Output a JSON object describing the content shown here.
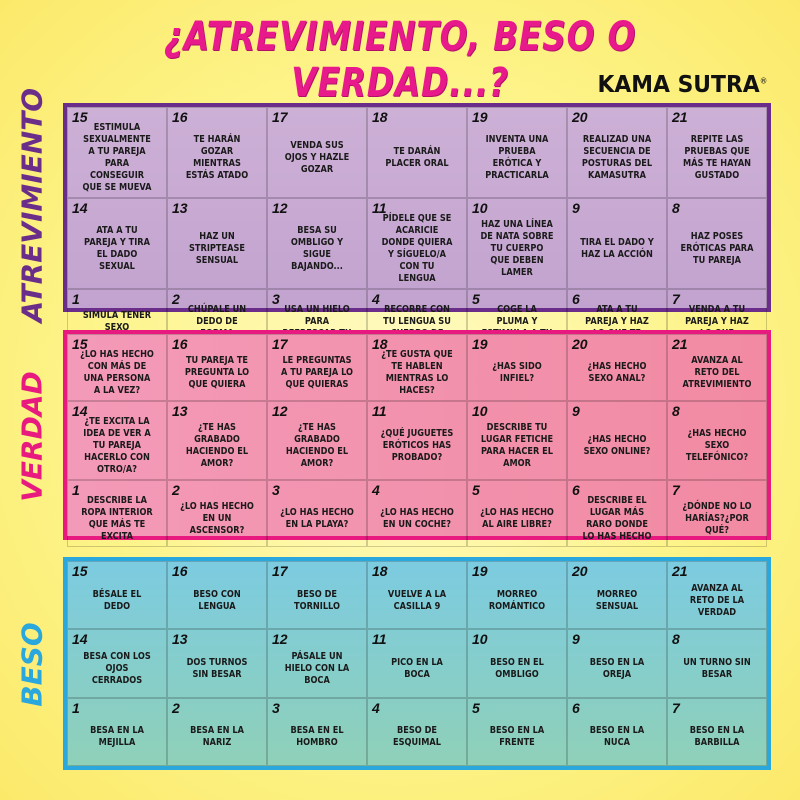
{
  "title": "¿ATREVIMIENTO, BESO O VERDAD...?",
  "logo": "KAMA SUTRA",
  "colors": {
    "title": "#e8198b",
    "atrevimiento": "#6b2d8a",
    "verdad": "#e8197f",
    "beso": "#2aa7dc",
    "background": "#fdf48a"
  },
  "sections": [
    {
      "label": "ATREVIMIENTO",
      "rows": [
        [
          {
            "num": "15",
            "text": "Estimula sexualmente a tu pareja para conseguir que se mueva"
          },
          {
            "num": "16",
            "text": "Te harán gozar mientras estás atado"
          },
          {
            "num": "17",
            "text": "Venda sus ojos y hazle gozar"
          },
          {
            "num": "18",
            "text": "Te darán placer oral"
          },
          {
            "num": "19",
            "text": "Inventa una prueba erótica y practicarla"
          },
          {
            "num": "20",
            "text": "Realizad una secuencia de posturas del Kamasutra"
          },
          {
            "num": "21",
            "text": "Repite las pruebas que más te hayan gustado"
          }
        ],
        [
          {
            "num": "14",
            "text": "Ata a tu pareja y tira el dado sexual"
          },
          {
            "num": "13",
            "text": "Haz un striptease sensual"
          },
          {
            "num": "12",
            "text": "Besa su ombligo y sigue bajando..."
          },
          {
            "num": "11",
            "text": "Pídele que se acaricie donde quiera y síguelo/a con tu lengua"
          },
          {
            "num": "10",
            "text": "Haz una línea de nata sobre tu cuerpo que deben lamer"
          },
          {
            "num": "9",
            "text": "Tira el dado y haz la acción"
          },
          {
            "num": "8",
            "text": "Haz poses eróticas para tu pareja"
          }
        ],
        [
          {
            "num": "1",
            "text": "Simula tener sexo telefónico"
          },
          {
            "num": "2",
            "text": "Chúpale un dedo de forma erótica"
          },
          {
            "num": "3",
            "text": "Usa un hielo para refrescar tu cuerpo"
          },
          {
            "num": "4",
            "text": "Recorre con tu lengua su cuerpo de pies a cabeza"
          },
          {
            "num": "5",
            "text": "Coge la pluma y estimula a tu pareja"
          },
          {
            "num": "6",
            "text": "Ata a tu pareja y haz lo que te apetezca"
          },
          {
            "num": "7",
            "text": "Venda a tu pareja y haz lo que quieras"
          }
        ]
      ]
    },
    {
      "label": "VERDAD",
      "rows": [
        [
          {
            "num": "15",
            "text": "¿Lo has hecho con más de una persona a la vez?"
          },
          {
            "num": "16",
            "text": "Tu pareja te pregunta lo que quiera"
          },
          {
            "num": "17",
            "text": "Le preguntas a tu pareja lo que quieras"
          },
          {
            "num": "18",
            "text": "¿Te gusta que te hablen mientras lo haces?"
          },
          {
            "num": "19",
            "text": "¿Has sido infiel?"
          },
          {
            "num": "20",
            "text": "¿Has hecho sexo anal?"
          },
          {
            "num": "21",
            "text": "Avanza al reto del atrevimiento"
          }
        ],
        [
          {
            "num": "14",
            "text": "¿Te excita la idea de ver a tu pareja hacerlo con otro/a?"
          },
          {
            "num": "13",
            "text": "¿Te has grabado haciendo el amor?"
          },
          {
            "num": "12",
            "text": "¿Te has grabado haciendo el amor?"
          },
          {
            "num": "11",
            "text": "¿Qué juguetes eróticos has probado?"
          },
          {
            "num": "10",
            "text": "Describe tu lugar fetiche para hacer el amor"
          },
          {
            "num": "9",
            "text": "¿Has hecho sexo online?"
          },
          {
            "num": "8",
            "text": "¿Has hecho sexo telefónico?"
          }
        ],
        [
          {
            "num": "1",
            "text": "Describe la ropa interior que más te excita"
          },
          {
            "num": "2",
            "text": "¿Lo has hecho en un ascensor?"
          },
          {
            "num": "3",
            "text": "¿Lo has hecho en la playa?"
          },
          {
            "num": "4",
            "text": "¿Lo has hecho en un coche?"
          },
          {
            "num": "5",
            "text": "¿Lo has hecho al aire libre?"
          },
          {
            "num": "6",
            "text": "Describe el lugar más raro donde lo has hecho"
          },
          {
            "num": "7",
            "text": "¿Dónde no lo harías?¿Por qué?"
          }
        ]
      ]
    },
    {
      "label": "BESO",
      "rows": [
        [
          {
            "num": "15",
            "text": "Bésale el dedo"
          },
          {
            "num": "16",
            "text": "Beso con lengua"
          },
          {
            "num": "17",
            "text": "Beso de tornillo"
          },
          {
            "num": "18",
            "text": "Vuelve a la casilla 9"
          },
          {
            "num": "19",
            "text": "Morreo romántico"
          },
          {
            "num": "20",
            "text": "Morreo sensual"
          },
          {
            "num": "21",
            "text": "Avanza al reto de la verdad"
          }
        ],
        [
          {
            "num": "14",
            "text": "Besa con los ojos cerrados"
          },
          {
            "num": "13",
            "text": "Dos turnos sin besar"
          },
          {
            "num": "12",
            "text": "Pásale un hielo con la boca"
          },
          {
            "num": "11",
            "text": "Pico en la boca"
          },
          {
            "num": "10",
            "text": "Beso en el ombligo"
          },
          {
            "num": "9",
            "text": "Beso en la oreja"
          },
          {
            "num": "8",
            "text": "Un turno sin besar"
          }
        ],
        [
          {
            "num": "1",
            "text": "Besa en la mejilla"
          },
          {
            "num": "2",
            "text": "Besa en la nariz"
          },
          {
            "num": "3",
            "text": "Besa en el hombro"
          },
          {
            "num": "4",
            "text": "Beso de esquimal"
          },
          {
            "num": "5",
            "text": "Beso en la frente"
          },
          {
            "num": "6",
            "text": "Beso en la nuca"
          },
          {
            "num": "7",
            "text": "Beso en la barbilla"
          }
        ]
      ]
    }
  ]
}
